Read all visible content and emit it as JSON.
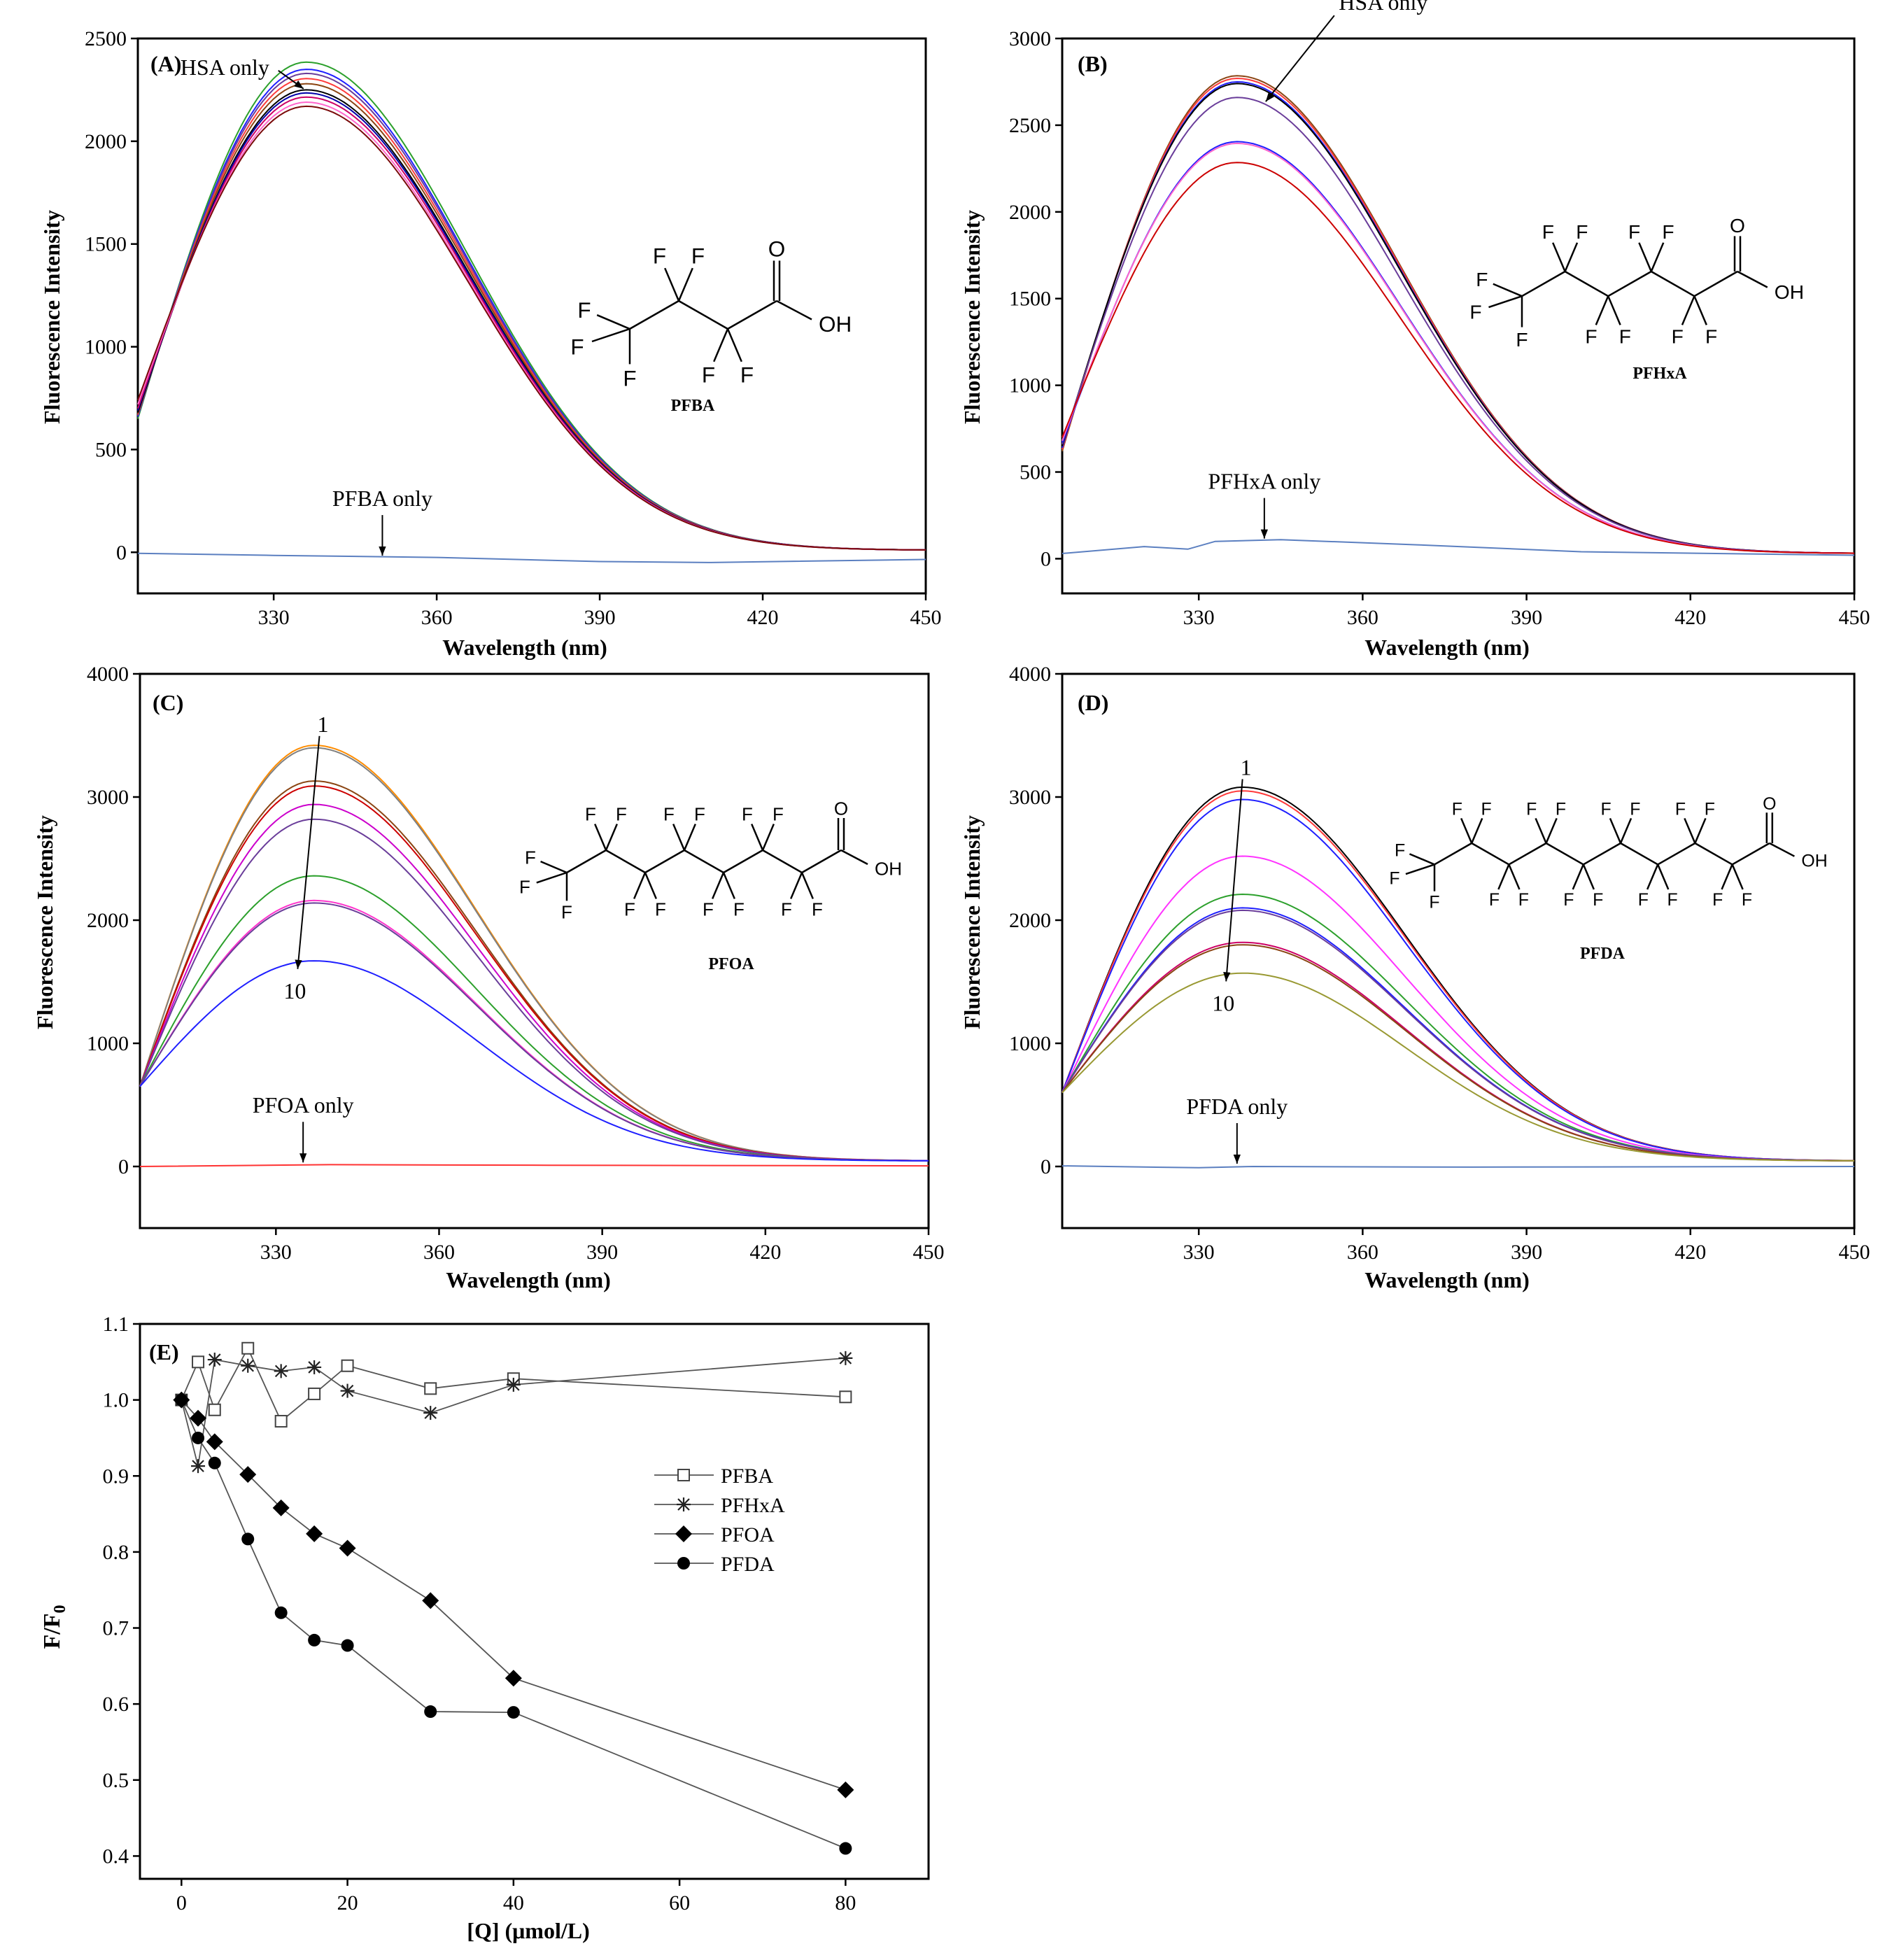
{
  "chart_data": [
    {
      "id": "A",
      "type": "line",
      "panel_label": "(A)",
      "xlabel": "Wavelength (nm)",
      "ylabel": "Fluorescence Intensity",
      "xlim": [
        305,
        450
      ],
      "ylim": [
        -200,
        2500
      ],
      "xticks": [
        330,
        360,
        390,
        420,
        450
      ],
      "yticks": [
        0,
        500,
        1000,
        1500,
        2000,
        2500
      ],
      "spectra": {
        "peak_x": 336,
        "start_values": [
          650,
          660,
          665,
          670,
          675,
          680,
          690,
          700,
          720,
          740
        ],
        "peak_values": [
          2385,
          2350,
          2330,
          2305,
          2280,
          2250,
          2235,
          2215,
          2190,
          2170
        ],
        "colors": [
          "#2ca02c",
          "#1f1fff",
          "#6a3d9a",
          "#ff3b3b",
          "#8b4513",
          "#000000",
          "#0000aa",
          "#cc0066",
          "#ff66cc",
          "#7a0a0a"
        ]
      },
      "reference_line": {
        "label": "PFBA only",
        "color": "#5b7fc0",
        "points": [
          [
            305,
            -5
          ],
          [
            330,
            -15
          ],
          [
            360,
            -25
          ],
          [
            390,
            -45
          ],
          [
            410,
            -50
          ],
          [
            450,
            -35
          ]
        ]
      },
      "annotations": [
        {
          "text": "HSA only",
          "target": [
            336,
            2235
          ],
          "anchor": "left"
        },
        {
          "text": "PFBA only",
          "target": [
            350,
            -30
          ],
          "anchor": "above"
        }
      ],
      "structure_name": "PFBA",
      "structure_carbons": 4
    },
    {
      "id": "B",
      "type": "line",
      "panel_label": "(B)",
      "xlabel": "Wavelength (nm)",
      "ylabel": "Fluorescence Intensity",
      "xlim": [
        305,
        450
      ],
      "ylim": [
        -200,
        3000
      ],
      "xticks": [
        330,
        360,
        390,
        420,
        450
      ],
      "yticks": [
        0,
        500,
        1000,
        1500,
        2000,
        2500,
        3000
      ],
      "spectra": {
        "peak_x": 337,
        "start_values": [
          620,
          630,
          640,
          650,
          660,
          670,
          680,
          700
        ],
        "peak_values": [
          2785,
          2770,
          2750,
          2740,
          2660,
          2405,
          2395,
          2285
        ],
        "colors": [
          "#8b4513",
          "#ff3b3b",
          "#1f1fff",
          "#000000",
          "#6a3d9a",
          "#1f1fff",
          "#ff66cc",
          "#cc0000"
        ]
      },
      "reference_line": {
        "label": "PFHxA only",
        "color": "#5b7fc0",
        "points": [
          [
            305,
            30
          ],
          [
            320,
            70
          ],
          [
            328,
            55
          ],
          [
            333,
            100
          ],
          [
            345,
            110
          ],
          [
            370,
            80
          ],
          [
            400,
            40
          ],
          [
            450,
            20
          ]
        ]
      },
      "annotations": [
        {
          "text": "HSA only",
          "target": [
            342,
            2620
          ],
          "anchor": "right"
        },
        {
          "text": "PFHxA only",
          "target": [
            342,
            100
          ],
          "anchor": "above"
        }
      ],
      "structure_name": "PFHxA",
      "structure_carbons": 6
    },
    {
      "id": "C",
      "type": "line",
      "panel_label": "(C)",
      "xlabel": "Wavelength (nm)",
      "ylabel": "Fluorescence Intensity",
      "xlim": [
        305,
        450
      ],
      "ylim": [
        -500,
        4000
      ],
      "xticks": [
        330,
        360,
        390,
        420,
        450
      ],
      "yticks": [
        0,
        1000,
        2000,
        3000,
        4000
      ],
      "spectra": {
        "peak_x": 337,
        "start_values": [
          650,
          650,
          650,
          650,
          650,
          650,
          650,
          650,
          650,
          650
        ],
        "peak_values": [
          3420,
          3400,
          3130,
          3090,
          2940,
          2820,
          2360,
          2160,
          2140,
          1670
        ],
        "colors": [
          "#ff8c00",
          "#808080",
          "#8b4513",
          "#cc0000",
          "#cc00cc",
          "#6a3d9a",
          "#2ca02c",
          "#ff33cc",
          "#6a3d9a",
          "#1f1fff"
        ]
      },
      "reference_line": {
        "label": "PFOA only",
        "color": "#ff3333",
        "points": [
          [
            305,
            0
          ],
          [
            340,
            15
          ],
          [
            380,
            10
          ],
          [
            450,
            5
          ]
        ]
      },
      "annotations": [
        {
          "text": "1",
          "target": [
            338,
            3450
          ],
          "anchor": "top"
        },
        {
          "text": "10",
          "target": [
            334,
            1660
          ],
          "anchor": "bottom"
        },
        {
          "text": "PFOA only",
          "target": [
            335,
            10
          ],
          "anchor": "above"
        }
      ],
      "structure_name": "PFOA",
      "structure_carbons": 8
    },
    {
      "id": "D",
      "type": "line",
      "panel_label": "(D)",
      "xlabel": "Wavelength (nm)",
      "ylabel": "Fluorescence Intensity",
      "xlim": [
        305,
        450
      ],
      "ylim": [
        -500,
        4000
      ],
      "xticks": [
        330,
        360,
        390,
        420,
        450
      ],
      "yticks": [
        0,
        1000,
        2000,
        3000,
        4000
      ],
      "spectra": {
        "peak_x": 338,
        "start_values": [
          600,
          600,
          600,
          600,
          600,
          600,
          600,
          600,
          600,
          600
        ],
        "peak_values": [
          3080,
          3050,
          2980,
          2520,
          2210,
          2100,
          2080,
          1820,
          1800,
          1570
        ],
        "colors": [
          "#000000",
          "#ff3b3b",
          "#1f1fff",
          "#ff33ff",
          "#2ca02c",
          "#1f1fff",
          "#6a3d9a",
          "#cc0066",
          "#8b4513",
          "#999933"
        ]
      },
      "reference_line": {
        "label": "PFDA only",
        "color": "#5b7fc0",
        "points": [
          [
            305,
            5
          ],
          [
            330,
            -10
          ],
          [
            340,
            0
          ],
          [
            380,
            -5
          ],
          [
            450,
            0
          ]
        ]
      },
      "annotations": [
        {
          "text": "1",
          "target": [
            338,
            3100
          ],
          "anchor": "top"
        },
        {
          "text": "10",
          "target": [
            335,
            1560
          ],
          "anchor": "bottom"
        },
        {
          "text": "PFDA only",
          "target": [
            337,
            0
          ],
          "anchor": "above"
        }
      ],
      "structure_name": "PFDA",
      "structure_carbons": 10
    },
    {
      "id": "E",
      "type": "line",
      "panel_label": "(E)",
      "xlabel": "[Q] (μmol/L)",
      "ylabel": "F/F",
      "ylabel_sub": "0",
      "xlim": [
        -5,
        90
      ],
      "ylim": [
        0.37,
        1.1
      ],
      "xticks": [
        0,
        20,
        40,
        60,
        80
      ],
      "yticks": [
        0.4,
        0.5,
        0.6,
        0.7,
        0.8,
        0.9,
        1.0,
        1.1
      ],
      "legend_position": "center-right",
      "series": [
        {
          "name": "PFBA",
          "marker": "open-square",
          "x": [
            0,
            2,
            4,
            8,
            12,
            16,
            20,
            30,
            40,
            80
          ],
          "y": [
            1.0,
            1.05,
            0.987,
            1.068,
            0.972,
            1.008,
            1.045,
            1.015,
            1.028,
            1.004
          ]
        },
        {
          "name": "PFHxA",
          "marker": "asterisk",
          "x": [
            0,
            2,
            4,
            8,
            12,
            16,
            20,
            30,
            40,
            80
          ],
          "y": [
            1.0,
            0.913,
            1.053,
            1.045,
            1.038,
            1.043,
            1.012,
            0.983,
            1.02,
            1.055
          ]
        },
        {
          "name": "PFOA",
          "marker": "filled-diamond",
          "x": [
            0,
            2,
            4,
            8,
            12,
            16,
            20,
            30,
            40,
            80
          ],
          "y": [
            1.0,
            0.976,
            0.945,
            0.902,
            0.858,
            0.824,
            0.805,
            0.736,
            0.634,
            0.487
          ]
        },
        {
          "name": "PFDA",
          "marker": "filled-circle",
          "x": [
            0,
            2,
            4,
            8,
            12,
            16,
            20,
            30,
            40,
            80
          ],
          "y": [
            1.0,
            0.95,
            0.917,
            0.817,
            0.72,
            0.684,
            0.677,
            0.59,
            0.589,
            0.41
          ]
        }
      ]
    }
  ],
  "structure_atoms": {
    "fluorine": "F",
    "oxygen": "O",
    "hydroxyl": "OH"
  }
}
